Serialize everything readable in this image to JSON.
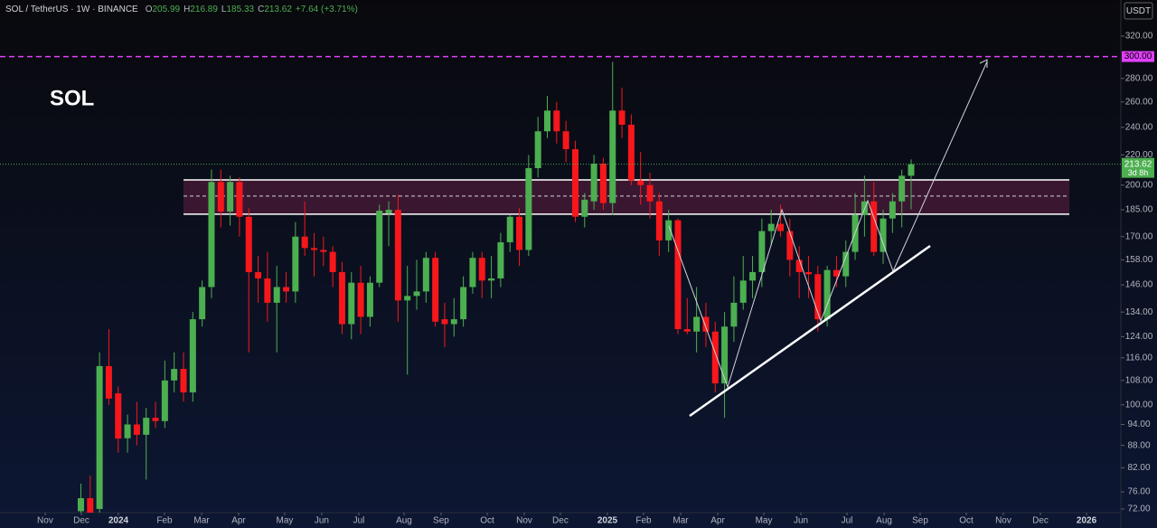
{
  "chart_data": {
    "type": "candlestick",
    "title": "SOL",
    "symbol": "SOL / TetherUS · 1W · BINANCE",
    "ohlc_labels": [
      "O",
      "H",
      "L",
      "C"
    ],
    "change": "+7.64 (+3.71%)",
    "currency": "USDT",
    "countdown": "3d 8h",
    "categories": [
      null,
      null,
      null,
      null,
      null,
      null,
      null,
      null,
      null,
      null,
      null,
      null,
      null,
      null,
      null,
      null,
      null,
      null,
      null,
      null,
      null,
      null,
      null,
      null,
      null,
      null,
      null,
      null,
      null,
      null,
      null,
      null,
      null,
      null,
      null,
      null,
      null,
      null,
      null,
      null,
      null,
      null,
      null,
      null,
      null,
      null,
      null,
      null,
      null,
      null,
      null,
      null,
      null,
      null,
      null,
      null,
      null,
      null,
      null,
      null,
      null,
      null,
      null,
      null,
      null,
      null,
      null,
      null,
      null,
      null,
      null,
      null,
      null,
      null,
      null,
      null,
      null,
      null,
      null,
      null,
      null,
      null,
      null,
      null,
      null,
      null,
      null,
      null,
      null,
      null
    ],
    "open": [
      71.5,
      74.5,
      72,
      113,
      103.7,
      90,
      94,
      91,
      96,
      95,
      108,
      112,
      104,
      131,
      145,
      202,
      184,
      202,
      181,
      152,
      149,
      138,
      145,
      143,
      170,
      164,
      163,
      162,
      152,
      129,
      147,
      132,
      147,
      183,
      185,
      139,
      141,
      143,
      159,
      131,
      129,
      131,
      145,
      159,
      148,
      149,
      167,
      181,
      163,
      211,
      237,
      253,
      237,
      224,
      181,
      190,
      214,
      189,
      253,
      242,
      203,
      200,
      190,
      168,
      179,
      127,
      126,
      132,
      126,
      107,
      128,
      138,
      148,
      152,
      173,
      177,
      173,
      158,
      152,
      151,
      131,
      153,
      150,
      162,
      182,
      190,
      162,
      180,
      190,
      205.99
    ],
    "high": [
      78,
      80,
      118,
      127,
      106,
      97,
      101,
      99,
      101,
      115,
      118,
      118,
      134,
      148,
      210,
      210,
      206,
      205,
      186,
      160,
      162,
      155,
      152,
      178,
      190,
      172,
      170,
      165,
      157,
      152,
      155,
      150,
      188,
      190,
      194,
      155,
      158,
      162,
      162,
      138,
      140,
      150,
      162,
      162,
      160,
      172,
      182,
      186,
      220,
      248,
      265,
      260,
      245,
      230,
      195,
      220,
      218,
      295,
      272,
      250,
      222,
      208,
      195,
      185,
      180,
      140,
      145,
      138,
      130,
      134,
      150,
      160,
      160,
      180,
      185,
      188,
      180,
      165,
      160,
      155,
      155,
      160,
      168,
      195,
      206,
      202,
      185,
      195,
      210,
      216.89
    ],
    "low": [
      68,
      70,
      70,
      100,
      86,
      86,
      88,
      79,
      93,
      93,
      104,
      101,
      101,
      128,
      140,
      175,
      176,
      170,
      118,
      138,
      130,
      118,
      138,
      138,
      160,
      150,
      155,
      145,
      125,
      123,
      125,
      128,
      145,
      165,
      130,
      110,
      135,
      138,
      128,
      120,
      124,
      128,
      142,
      140,
      140,
      145,
      162,
      155,
      160,
      205,
      232,
      228,
      215,
      178,
      175,
      185,
      185,
      182,
      232,
      200,
      188,
      180,
      160,
      162,
      125,
      125,
      118,
      120,
      104,
      96,
      122,
      135,
      140,
      145,
      165,
      170,
      150,
      140,
      140,
      126,
      128,
      145,
      145,
      158,
      170,
      160,
      156,
      172,
      175,
      185.33
    ],
    "close": [
      74.5,
      71,
      113,
      102,
      89.9,
      94,
      91,
      96,
      95,
      108,
      112,
      104,
      131,
      145,
      202,
      184,
      202,
      181,
      152,
      149,
      138,
      145,
      143,
      170,
      164,
      163,
      162,
      152,
      129,
      147,
      132,
      147,
      184.5,
      185,
      139,
      141,
      143,
      159,
      130,
      129,
      131,
      145,
      159,
      148,
      149,
      167,
      181,
      163,
      211,
      237,
      253,
      237,
      224,
      181,
      191,
      214,
      189,
      253,
      242,
      203,
      200,
      190,
      168,
      179,
      127,
      126,
      132,
      126,
      107,
      128,
      138,
      148,
      152,
      173,
      177,
      173,
      158,
      152,
      151,
      131,
      153,
      150,
      162,
      182,
      190,
      162,
      180,
      190,
      206,
      213.62
    ],
    "up_color": "#4caf50",
    "down_color": "#f7171b",
    "log_scale": true,
    "ylim": [
      71.18,
      358.6
    ],
    "yticks": [
      {
        "value": 72,
        "label": "72.00"
      },
      {
        "value": 76,
        "label": "76.00"
      },
      {
        "value": 82,
        "label": "82.00"
      },
      {
        "value": 88,
        "label": "88.00"
      },
      {
        "value": 94,
        "label": "94.00"
      },
      {
        "value": 100,
        "label": "100.00"
      },
      {
        "value": 108,
        "label": "108.00"
      },
      {
        "value": 116,
        "label": "116.00"
      },
      {
        "value": 124,
        "label": "124.00"
      },
      {
        "value": 134,
        "label": "134.00"
      },
      {
        "value": 146,
        "label": "146.00"
      },
      {
        "value": 158,
        "label": "158.00"
      },
      {
        "value": 170,
        "label": "170.00"
      },
      {
        "value": 185,
        "label": "185.00"
      },
      {
        "value": 200,
        "label": "200.00"
      },
      {
        "value": 220,
        "label": "220.00"
      },
      {
        "value": 240,
        "label": "240.00"
      },
      {
        "value": 260,
        "label": "260.00"
      },
      {
        "value": 280,
        "label": "280.00"
      },
      {
        "value": 320,
        "label": "320.00"
      }
    ],
    "xlim": [
      -8.67,
      111.48
    ],
    "xticks": [
      {
        "value": -3.83,
        "label": "Nov"
      },
      {
        "value": 0.05,
        "label": "Dec"
      },
      {
        "value": 4.02,
        "label": "2024"
      },
      {
        "value": 8.96,
        "label": "Feb"
      },
      {
        "value": 12.94,
        "label": "Mar"
      },
      {
        "value": 16.91,
        "label": "Apr"
      },
      {
        "value": 21.85,
        "label": "May"
      },
      {
        "value": 25.82,
        "label": "Jun"
      },
      {
        "value": 29.8,
        "label": "Jul"
      },
      {
        "value": 34.64,
        "label": "Aug"
      },
      {
        "value": 38.61,
        "label": "Sep"
      },
      {
        "value": 43.56,
        "label": "Oct"
      },
      {
        "value": 47.53,
        "label": "Nov"
      },
      {
        "value": 51.4,
        "label": "Dec"
      },
      {
        "value": 56.44,
        "label": "2025"
      },
      {
        "value": 60.32,
        "label": "Feb"
      },
      {
        "value": 64.29,
        "label": "Mar"
      },
      {
        "value": 68.27,
        "label": "Apr"
      },
      {
        "value": 73.21,
        "label": "May"
      },
      {
        "value": 77.18,
        "label": "Jun"
      },
      {
        "value": 82.12,
        "label": "Jul"
      },
      {
        "value": 86.1,
        "label": "Aug"
      },
      {
        "value": 89.97,
        "label": "Sep"
      },
      {
        "value": 94.91,
        "label": "Oct"
      },
      {
        "value": 98.88,
        "label": "Nov"
      },
      {
        "value": 102.86,
        "label": "Dec"
      },
      {
        "value": 107.8,
        "label": "2026"
      }
    ],
    "hline": {
      "value": 300,
      "label": "300.00",
      "color": "#e040fb"
    },
    "zone": {
      "top": 203.3,
      "mid": 193.2,
      "bottom": 182.5
    }
  }
}
